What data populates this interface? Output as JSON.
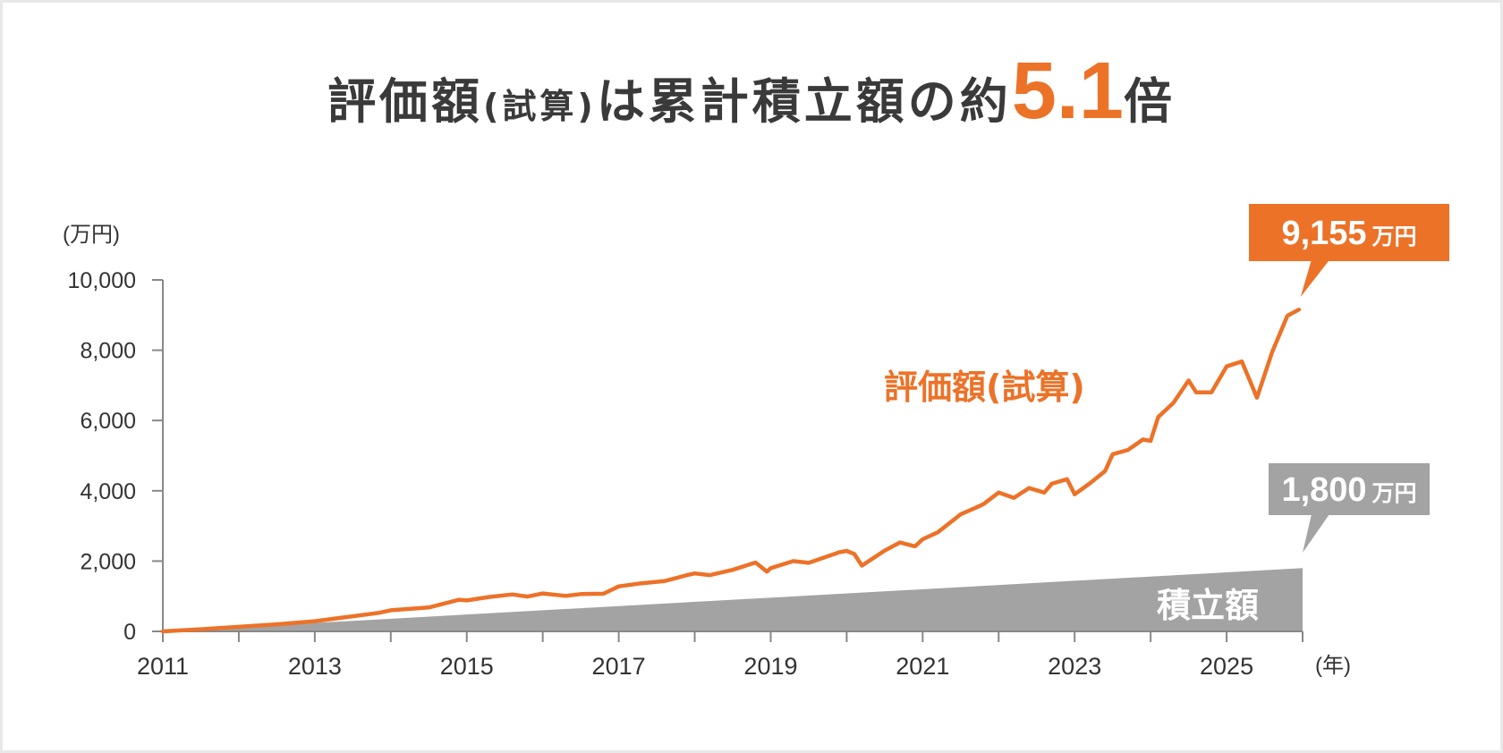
{
  "title": {
    "part1": "評価額",
    "part2": "(試算)",
    "part3": "は累計積立額の約",
    "ratio": "5.1",
    "part4": "倍"
  },
  "colors": {
    "valuation": "#ec7228",
    "contribution": "#a3a3a3",
    "axis": "#888888"
  },
  "chart_data": {
    "type": "area",
    "xlabel": "(年)",
    "ylabel": "(万円)",
    "xlim": [
      2011,
      2026
    ],
    "ylim": [
      0,
      10000
    ],
    "x_ticks": [
      "2011",
      "2013",
      "2015",
      "2017",
      "2019",
      "2021",
      "2023",
      "2025"
    ],
    "y_ticks": [
      "0",
      "2,000",
      "4,000",
      "6,000",
      "8,000",
      "10,000"
    ],
    "series": [
      {
        "name": "評価額(試算)",
        "kind": "line",
        "x": [
          2011.0,
          2011.5,
          2012.0,
          2012.5,
          2013.0,
          2013.5,
          2013.85,
          2014.0,
          2014.5,
          2014.9,
          2015.0,
          2015.3,
          2015.6,
          2015.8,
          2016.0,
          2016.3,
          2016.5,
          2016.8,
          2017.0,
          2017.3,
          2017.6,
          2017.9,
          2018.0,
          2018.2,
          2018.5,
          2018.8,
          2018.95,
          2019.0,
          2019.3,
          2019.5,
          2019.7,
          2019.9,
          2020.0,
          2020.1,
          2020.2,
          2020.5,
          2020.7,
          2020.9,
          2021.0,
          2021.2,
          2021.5,
          2021.7,
          2021.8,
          2022.0,
          2022.2,
          2022.4,
          2022.6,
          2022.7,
          2022.9,
          2023.0,
          2023.2,
          2023.4,
          2023.5,
          2023.7,
          2023.9,
          2024.0,
          2024.1,
          2024.3,
          2024.5,
          2024.6,
          2024.8,
          2025.0,
          2025.2,
          2025.4,
          2025.6,
          2025.8,
          2025.95
        ],
        "y": [
          0,
          60,
          130,
          200,
          290,
          430,
          530,
          600,
          680,
          900,
          880,
          980,
          1050,
          990,
          1080,
          1010,
          1060,
          1070,
          1280,
          1370,
          1430,
          1600,
          1650,
          1600,
          1750,
          1960,
          1700,
          1800,
          2000,
          1950,
          2100,
          2250,
          2290,
          2200,
          1870,
          2300,
          2530,
          2420,
          2620,
          2820,
          3330,
          3520,
          3620,
          3950,
          3800,
          4080,
          3950,
          4200,
          4330,
          3900,
          4210,
          4560,
          5040,
          5160,
          5460,
          5420,
          6100,
          6500,
          7140,
          6800,
          6800,
          7540,
          7680,
          6650,
          7950,
          8980,
          9155
        ]
      },
      {
        "name": "積立額",
        "kind": "area",
        "x": [
          2011,
          2026
        ],
        "y": [
          0,
          1800
        ]
      }
    ],
    "callouts": [
      {
        "series": "評価額(試算)",
        "value": "9,155",
        "unit": "万円"
      },
      {
        "series": "積立額",
        "value": "1,800",
        "unit": "万円"
      }
    ]
  }
}
